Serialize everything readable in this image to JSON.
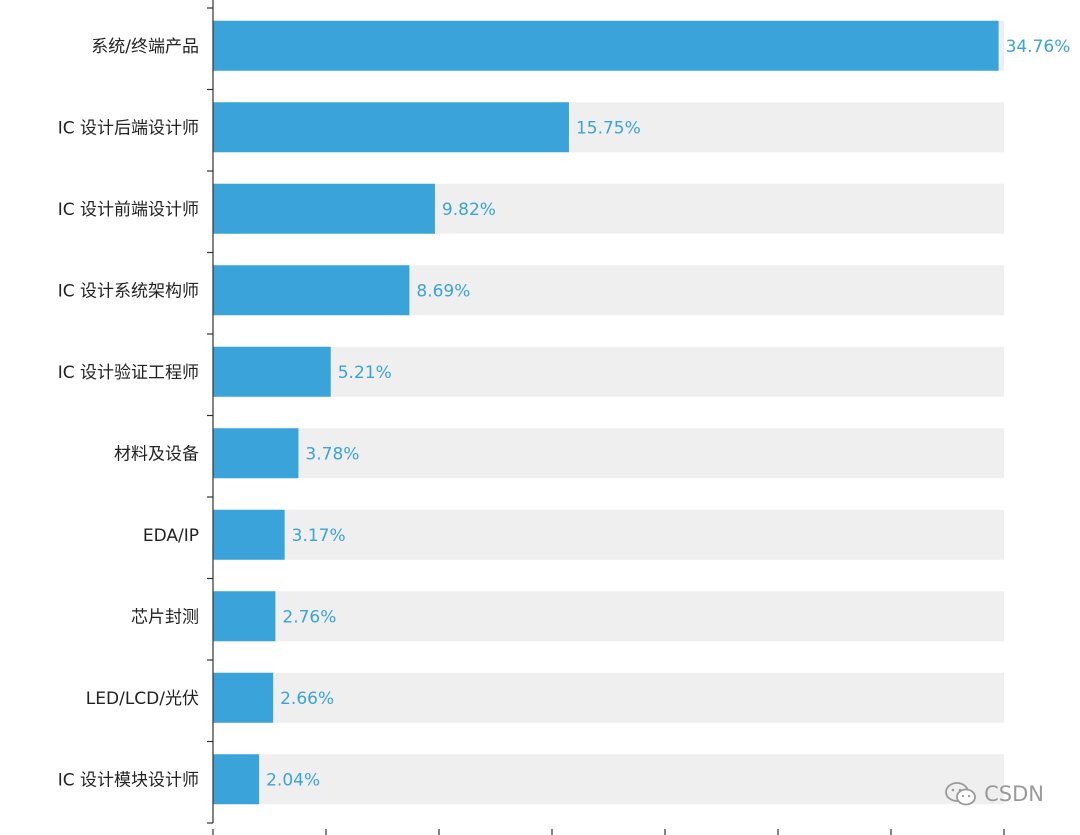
{
  "chart_data": {
    "type": "bar",
    "orientation": "horizontal",
    "categories": [
      "系统/终端产品",
      "IC 设计后端设计师",
      "IC 设计前端设计师",
      "IC 设计系统架构师",
      "IC 设计验证工程师",
      "材料及设备",
      "EDA/IP",
      "芯片封测",
      "LED/LCD/光伏",
      "IC 设计模块设计师"
    ],
    "values": [
      34.76,
      15.75,
      9.82,
      8.69,
      5.21,
      3.78,
      3.17,
      2.76,
      2.66,
      2.04
    ],
    "value_labels": [
      "34.76%",
      "15.75%",
      "9.82%",
      "8.69%",
      "5.21%",
      "3.78%",
      "3.17%",
      "2.76%",
      "2.66%",
      "2.04%"
    ],
    "xlim": [
      0,
      35
    ],
    "background_bars": true,
    "grid": false,
    "title": "",
    "xlabel": "",
    "ylabel": ""
  },
  "colors": {
    "bar": "#3aa3da",
    "background_bar": "#efefef",
    "value_label": "#3aa3da",
    "axis": "#333333"
  },
  "watermark": {
    "text": "CSDN",
    "icon": "wechat-icon"
  }
}
